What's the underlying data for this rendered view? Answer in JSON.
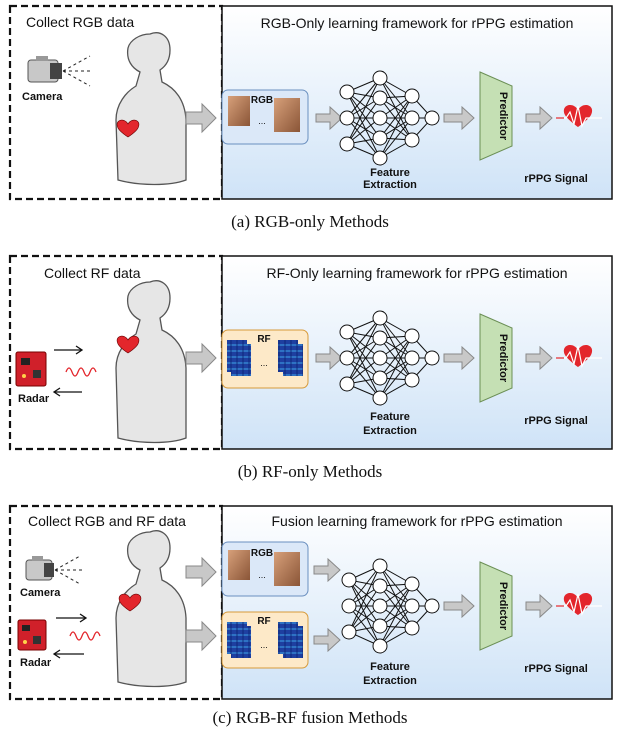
{
  "panels": [
    {
      "collect_title": "Collect RGB  data",
      "framework_title": "RGB-Only learning framework for rPPG estimation",
      "camera_label": "Camera",
      "rgb_label": "RGB",
      "ellipsis": "...",
      "feature_line1": "Feature",
      "feature_line2": "Extraction",
      "predictor_label": "Predictor",
      "signal_label": "rPPG Signal",
      "caption": "(a) RGB-only Methods"
    },
    {
      "collect_title": "Collect RF data",
      "framework_title": "RF-Only learning framework for rPPG estimation",
      "radar_label": "Radar",
      "rf_label": "RF",
      "ellipsis": "...",
      "feature_line1": "Feature",
      "feature_line2": "Extraction",
      "predictor_label": "Predictor",
      "signal_label": "rPPG Signal",
      "caption": "(b) RF-only Methods"
    },
    {
      "collect_title": "Collect RGB and RF data",
      "framework_title": "Fusion learning framework for rPPG estimation",
      "camera_label": "Camera",
      "radar_label": "Radar",
      "rgb_label": "RGB",
      "rf_label": "RF",
      "ellipsis": "...",
      "feature_line1": "Feature",
      "feature_line2": "Extraction",
      "predictor_label": "Predictor",
      "signal_label": "rPPG Signal",
      "caption": "(c) RGB-RF fusion Methods"
    }
  ],
  "colors": {
    "framework_bg_top": "#ffffff",
    "framework_bg_bottom": "#cfe3f7",
    "rgb_box": "#dbe8f8",
    "rf_box": "#fde9c8",
    "predictor": "#c5e0b4",
    "arrow": "#c8c8c8",
    "heart": "#e3262c"
  }
}
